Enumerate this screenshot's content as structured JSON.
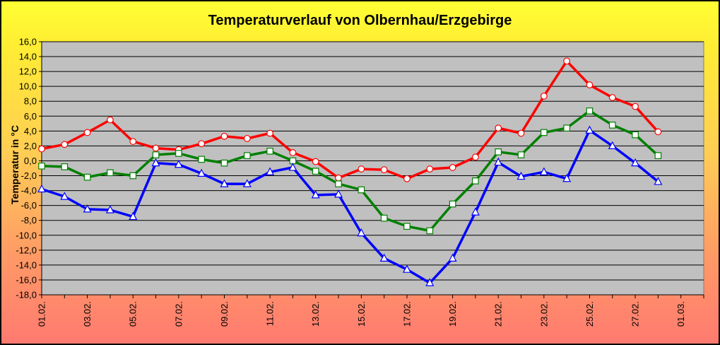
{
  "chart_data": {
    "type": "line",
    "title": "Temperaturverlauf von Olbernhau/Erzgebirge",
    "xlabel": "",
    "ylabel": "Temperatur in °C",
    "ylim": [
      -18,
      16
    ],
    "yticks": [
      "16,0",
      "14,0",
      "12,0",
      "10,0",
      "8,0",
      "6,0",
      "4,0",
      "2,0",
      "0,0",
      "-2,0",
      "-4,0",
      "-6,0",
      "-8,0",
      "-10,0",
      "-12,0",
      "-14,0",
      "-16,0",
      "-18,0"
    ],
    "tick_labels": [
      "01.02.",
      "03.02.",
      "05.02.",
      "07.02.",
      "09.02.",
      "11.02.",
      "13.02.",
      "15.02.",
      "17.02.",
      "19.02.",
      "21.02.",
      "23.02.",
      "25.02.",
      "27.02.",
      "01.03."
    ],
    "x": [
      "01.02.",
      "02.02.",
      "03.02.",
      "04.02.",
      "05.02.",
      "06.02.",
      "07.02.",
      "08.02.",
      "09.02.",
      "10.02.",
      "11.02.",
      "12.02.",
      "13.02.",
      "14.02.",
      "15.02.",
      "16.02.",
      "17.02.",
      "18.02.",
      "19.02.",
      "20.02.",
      "21.02.",
      "22.02.",
      "23.02.",
      "24.02.",
      "25.02.",
      "26.02.",
      "27.02.",
      "28.02."
    ],
    "grid": true,
    "plot_background": "#c0c0c0",
    "series": [
      {
        "color": "#ff0000",
        "marker": "circle",
        "values": [
          1.6,
          2.2,
          3.8,
          5.5,
          2.6,
          1.7,
          1.5,
          2.3,
          3.3,
          3.0,
          3.7,
          1.1,
          -0.1,
          -2.3,
          -1.1,
          -1.2,
          -2.4,
          -1.1,
          -0.9,
          0.5,
          4.4,
          3.7,
          8.7,
          13.4,
          10.2,
          8.5,
          7.3,
          3.9
        ]
      },
      {
        "color": "#008000",
        "marker": "square",
        "values": [
          -0.7,
          -0.8,
          -2.2,
          -1.6,
          -2.0,
          0.8,
          1.0,
          0.2,
          -0.3,
          0.7,
          1.3,
          0.0,
          -1.4,
          -3.1,
          -3.9,
          -7.7,
          -8.8,
          -9.4,
          -5.8,
          -2.7,
          1.2,
          0.8,
          3.8,
          4.4,
          6.7,
          4.8,
          3.5,
          0.7
        ]
      },
      {
        "color": "#0000ff",
        "marker": "triangle",
        "values": [
          -3.8,
          -4.8,
          -6.5,
          -6.6,
          -7.5,
          -0.3,
          -0.5,
          -1.7,
          -3.1,
          -3.1,
          -1.5,
          -0.9,
          -4.6,
          -4.5,
          -9.7,
          -13.1,
          -14.6,
          -16.4,
          -13.1,
          -6.9,
          -0.2,
          -2.1,
          -1.5,
          -2.4,
          4.1,
          2.0,
          -0.3,
          -2.8
        ]
      }
    ]
  }
}
